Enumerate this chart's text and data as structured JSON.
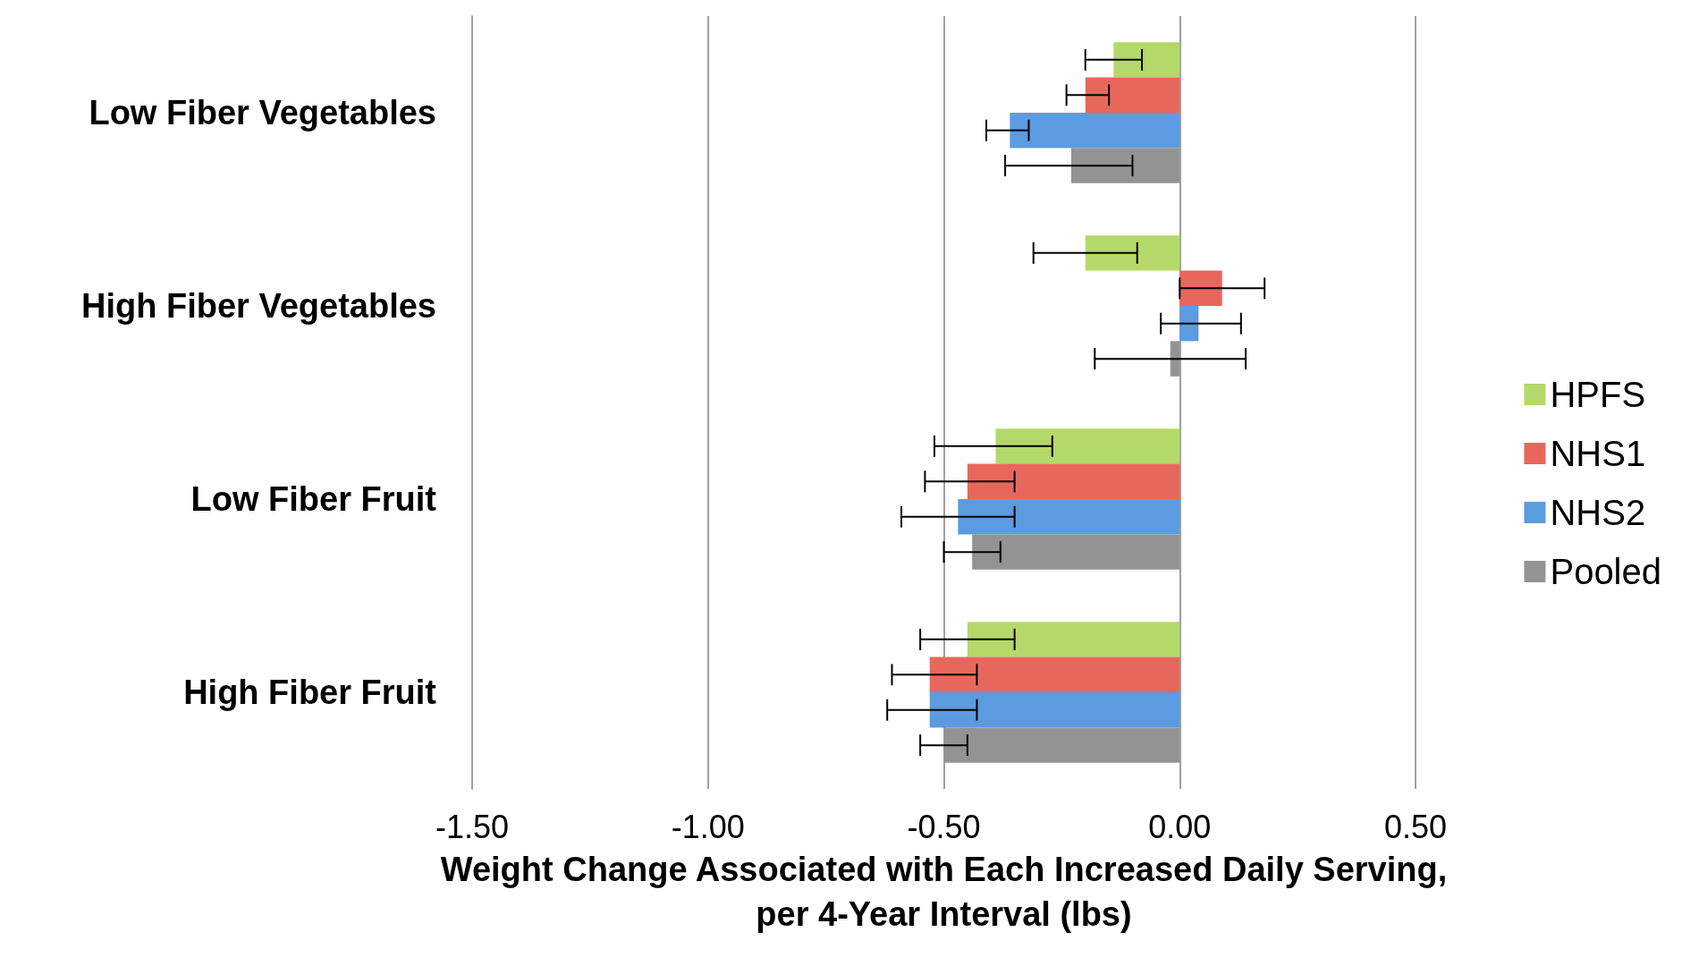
{
  "chart_data": {
    "type": "bar",
    "orientation": "horizontal",
    "xlabel": "Weight Change Associated with Each Increased Daily Serving,\nper 4-Year Interval (lbs)",
    "categories": [
      "Low Fiber Vegetables",
      "High Fiber Vegetables",
      "Low Fiber Fruit",
      "High Fiber Fruit"
    ],
    "series": [
      {
        "name": "HPFS",
        "color": "#b5d86a",
        "values": [
          -0.14,
          -0.2,
          -0.39,
          -0.45
        ],
        "errors": [
          [
            -0.2,
            -0.08
          ],
          [
            -0.31,
            -0.09
          ],
          [
            -0.52,
            -0.27
          ],
          [
            -0.55,
            -0.35
          ]
        ]
      },
      {
        "name": "NHS1",
        "color": "#e8675d",
        "values": [
          -0.2,
          0.09,
          -0.45,
          -0.53
        ],
        "errors": [
          [
            -0.24,
            -0.15
          ],
          [
            0,
            0.18
          ],
          [
            -0.54,
            -0.35
          ],
          [
            -0.61,
            -0.43
          ]
        ]
      },
      {
        "name": "NHS2",
        "color": "#5b9be0",
        "values": [
          -0.36,
          0.04,
          -0.47,
          -0.53
        ],
        "errors": [
          [
            -0.41,
            -0.32
          ],
          [
            -0.04,
            0.13
          ],
          [
            -0.59,
            -0.35
          ],
          [
            -0.62,
            -0.43
          ]
        ]
      },
      {
        "name": "Pooled",
        "color": "#939393",
        "values": [
          -0.23,
          -0.02,
          -0.44,
          -0.5
        ],
        "errors": [
          [
            -0.37,
            -0.1
          ],
          [
            -0.18,
            0.14
          ],
          [
            -0.5,
            -0.38
          ],
          [
            -0.55,
            -0.45
          ]
        ]
      }
    ],
    "xlim": [
      -1.5,
      0.5
    ],
    "xticks": [
      {
        "value": -1.5,
        "label": "-1.50"
      },
      {
        "value": -1,
        "label": "-1.00"
      },
      {
        "value": -0.5,
        "label": "-0.50"
      },
      {
        "value": 0,
        "label": "0.00"
      },
      {
        "value": 0.5,
        "label": "0.50"
      }
    ],
    "grid": "x",
    "legend": "right"
  }
}
